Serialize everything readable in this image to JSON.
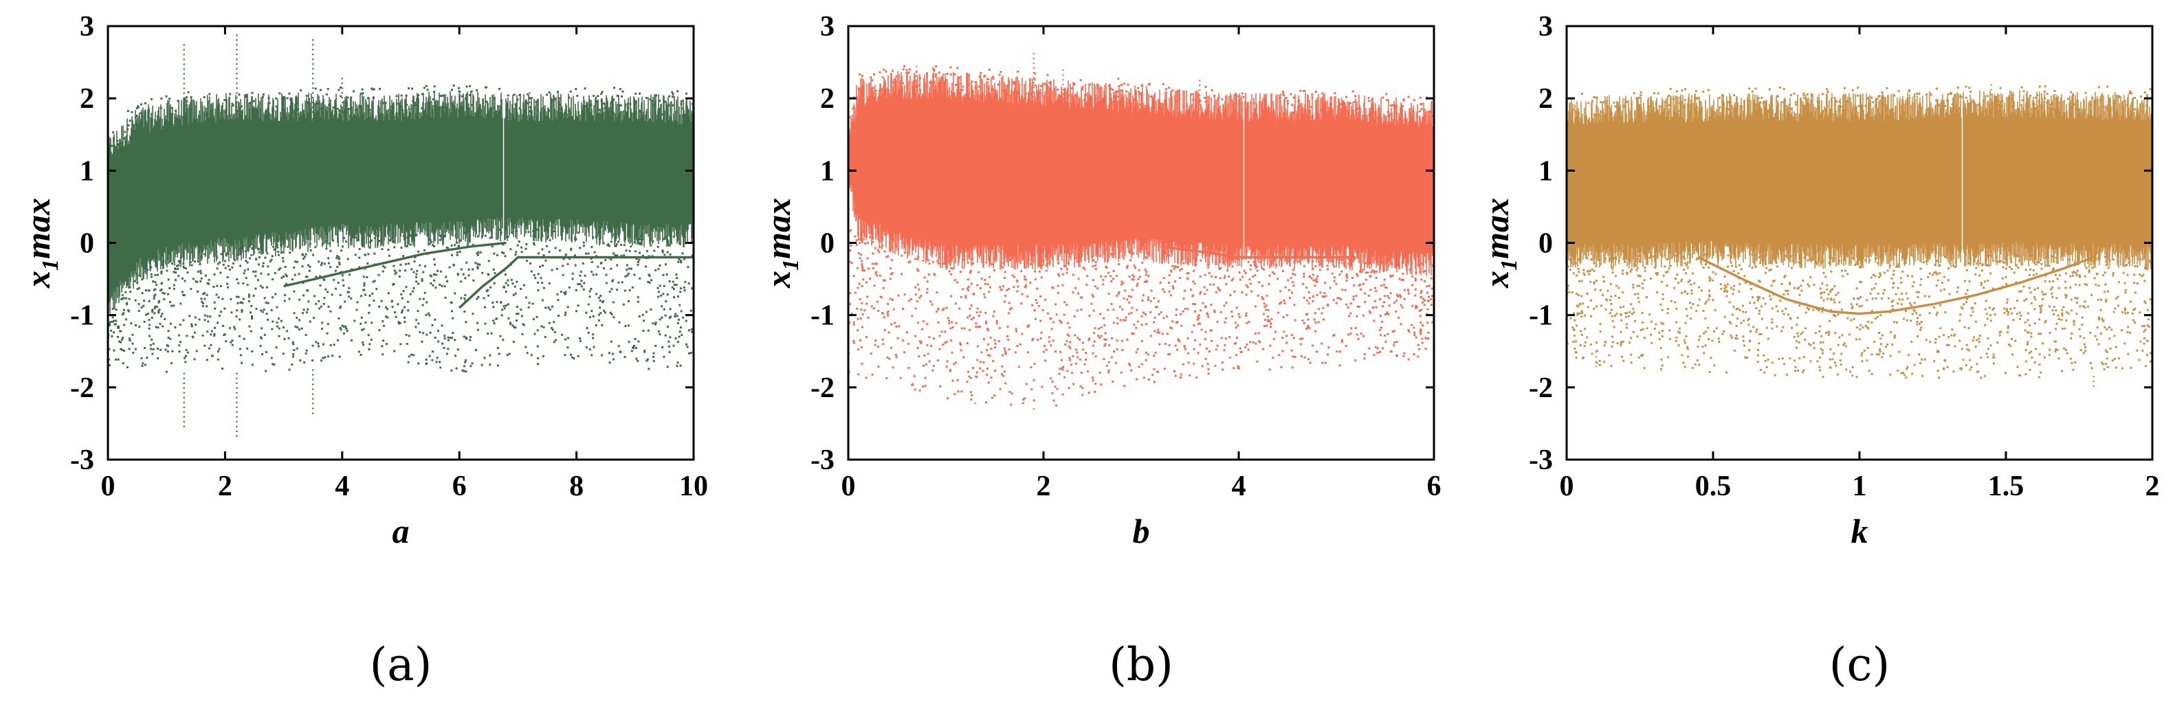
{
  "chart_data": [
    {
      "type": "scatter",
      "title": "",
      "caption": "(a)",
      "xlabel": "a",
      "ylabel": {
        "main": "x",
        "sub": "1",
        "suffix": "max"
      },
      "xlim": [
        0,
        10
      ],
      "ylim": [
        -3,
        3
      ],
      "xticks": [
        0,
        2,
        4,
        6,
        8,
        10
      ],
      "xtick_labels": [
        "0",
        "2",
        "4",
        "6",
        "8",
        "10"
      ],
      "yticks": [
        -3,
        -2,
        -1,
        0,
        1,
        2,
        3
      ],
      "ytick_labels": [
        "-3",
        "-2",
        "-1",
        "0",
        "1",
        "2",
        "3"
      ],
      "grid": false,
      "color": "#3f6b48",
      "series": [
        {
          "dense_band": [
            [
              0,
              -0.9,
              1.2
            ],
            [
              0.5,
              -0.4,
              1.6
            ],
            [
              1,
              -0.2,
              1.7
            ],
            [
              2,
              -0.1,
              1.8
            ],
            [
              3,
              0.0,
              1.8
            ],
            [
              4,
              0.1,
              1.8
            ],
            [
              5,
              0.1,
              1.8
            ],
            [
              6,
              0.15,
              1.85
            ],
            [
              7,
              0.2,
              1.8
            ],
            [
              8,
              0.15,
              1.8
            ],
            [
              9,
              0.1,
              1.8
            ],
            [
              10,
              0.1,
              1.75
            ]
          ],
          "sparse_band": [
            [
              0,
              -1.8,
              -0.9
            ],
            [
              0.5,
              -1.7,
              -0.4
            ],
            [
              1,
              -1.8,
              -0.2
            ],
            [
              2,
              -1.8,
              -0.1
            ],
            [
              3,
              -1.8,
              0.0
            ],
            [
              4,
              -1.7,
              0.1
            ],
            [
              5,
              -1.7,
              0.1
            ],
            [
              6,
              -1.8,
              0.15
            ],
            [
              7,
              -1.7,
              0.2
            ],
            [
              8,
              -1.7,
              0.15
            ],
            [
              9,
              -1.8,
              0.1
            ],
            [
              10,
              -1.7,
              0.1
            ]
          ],
          "spikes": [
            [
              1.3,
              2.75
            ],
            [
              1.3,
              -2.6
            ],
            [
              2.2,
              2.9
            ],
            [
              2.2,
              -2.7
            ],
            [
              3.5,
              2.85
            ],
            [
              3.5,
              -2.4
            ],
            [
              4.0,
              2.3
            ],
            [
              7.2,
              2.1
            ]
          ],
          "curves": [
            {
              "x": [
                6.0,
                6.4,
                6.8,
                7.0,
                7.5,
                8,
                9,
                10
              ],
              "y": [
                -0.9,
                -0.6,
                -0.35,
                -0.2,
                -0.2,
                -0.2,
                -0.2,
                -0.2
              ]
            },
            {
              "x": [
                3.0,
                3.8,
                4.6,
                5.4,
                6.2,
                6.8
              ],
              "y": [
                -0.6,
                -0.45,
                -0.3,
                -0.15,
                -0.05,
                0.0
              ]
            }
          ],
          "gap_x": 6.75
        }
      ]
    },
    {
      "type": "scatter",
      "title": "",
      "caption": "(b)",
      "xlabel": "b",
      "ylabel": {
        "main": "x",
        "sub": "1",
        "suffix": "max"
      },
      "xlim": [
        0,
        6
      ],
      "ylim": [
        -3,
        3
      ],
      "xticks": [
        0,
        2,
        4,
        6
      ],
      "xtick_labels": [
        "0",
        "2",
        "4",
        "6"
      ],
      "yticks": [
        -3,
        -2,
        -1,
        0,
        1,
        2,
        3
      ],
      "ytick_labels": [
        "-3",
        "-2",
        "-1",
        "0",
        "1",
        "2",
        "3"
      ],
      "grid": false,
      "color": "#f36d52",
      "series": [
        {
          "dense_band": [
            [
              0,
              0.9,
              1.4
            ],
            [
              0.1,
              0.2,
              2.0
            ],
            [
              0.5,
              0.0,
              2.1
            ],
            [
              1,
              -0.2,
              2.1
            ],
            [
              2,
              -0.2,
              2.0
            ],
            [
              3,
              -0.1,
              1.9
            ],
            [
              4,
              -0.2,
              1.8
            ],
            [
              5,
              -0.2,
              1.8
            ],
            [
              6,
              -0.3,
              1.7
            ]
          ],
          "sparse_band": [
            [
              0.1,
              -1.9,
              0.2
            ],
            [
              1,
              -2.2,
              -0.2
            ],
            [
              2,
              -2.3,
              -0.2
            ],
            [
              3,
              -2.0,
              -0.1
            ],
            [
              4,
              -1.8,
              -0.2
            ],
            [
              5,
              -1.7,
              -0.2
            ],
            [
              6,
              -1.6,
              -0.3
            ]
          ],
          "spikes": [
            [
              0.7,
              2.5
            ],
            [
              1.9,
              2.65
            ],
            [
              2.2,
              2.4
            ],
            [
              3.6,
              2.3
            ],
            [
              1.9,
              -2.35
            ],
            [
              1.3,
              -2.2
            ]
          ],
          "curves": [
            {
              "x": [
                3.2,
                3.6,
                4.0,
                4.4,
                4.8,
                5.2
              ],
              "y": [
                -0.05,
                -0.12,
                -0.2,
                -0.2,
                -0.2,
                -0.2
              ]
            }
          ],
          "gap_x": 4.05
        }
      ]
    },
    {
      "type": "scatter",
      "title": "",
      "caption": "(c)",
      "xlabel": "k",
      "ylabel": {
        "main": "x",
        "sub": "1",
        "suffix": "max"
      },
      "xlim": [
        0,
        2
      ],
      "ylim": [
        -3,
        3
      ],
      "xticks": [
        0,
        0.5,
        1,
        1.5,
        2
      ],
      "xtick_labels": [
        "0",
        "0.5",
        "1",
        "1.5",
        "2"
      ],
      "yticks": [
        -3,
        -2,
        -1,
        0,
        1,
        2,
        3
      ],
      "ytick_labels": [
        "-3",
        "-2",
        "-1",
        "0",
        "1",
        "2",
        "3"
      ],
      "grid": false,
      "color": "#c98f45",
      "series": [
        {
          "dense_band": [
            [
              0,
              -0.2,
              1.75
            ],
            [
              0.5,
              -0.15,
              1.8
            ],
            [
              1,
              -0.2,
              1.8
            ],
            [
              1.5,
              -0.15,
              1.85
            ],
            [
              2,
              -0.2,
              1.8
            ]
          ],
          "sparse_band": [
            [
              0,
              -1.7,
              -0.2
            ],
            [
              0.5,
              -1.8,
              -0.15
            ],
            [
              1,
              -1.9,
              -0.2
            ],
            [
              1.5,
              -1.9,
              -0.15
            ],
            [
              2,
              -1.8,
              -0.2
            ]
          ],
          "spikes": [
            [
              1.45,
              2.2
            ],
            [
              1.8,
              -2.0
            ],
            [
              0.1,
              -1.5
            ]
          ],
          "curves": [
            {
              "x": [
                0.45,
                0.6,
                0.75,
                0.9,
                1.0,
                1.1,
                1.25,
                1.4,
                1.55,
                1.7,
                1.8
              ],
              "y": [
                -0.2,
                -0.5,
                -0.78,
                -0.95,
                -0.98,
                -0.95,
                -0.85,
                -0.72,
                -0.55,
                -0.35,
                -0.2
              ]
            }
          ],
          "gap_x": 1.35
        }
      ]
    }
  ]
}
